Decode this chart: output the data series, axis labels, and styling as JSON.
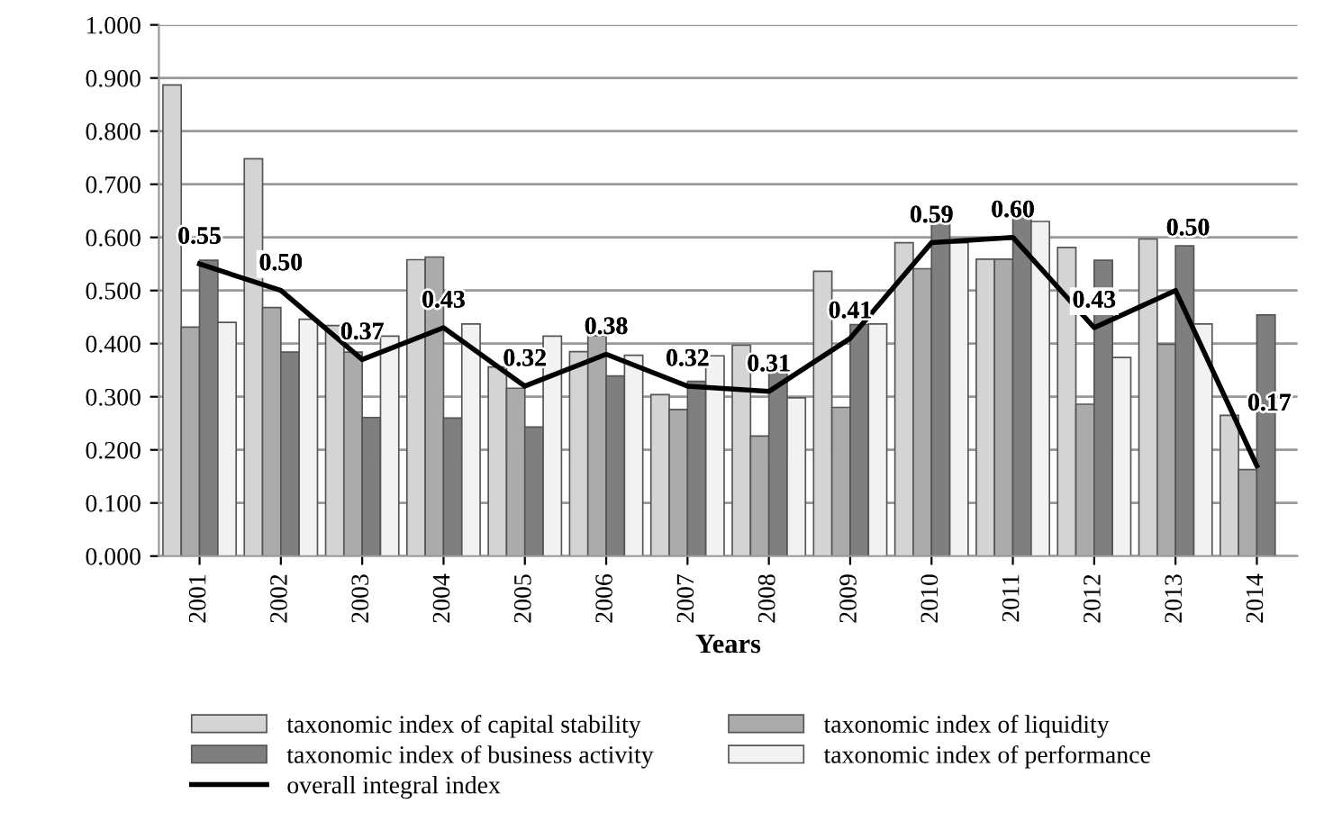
{
  "chart_data": {
    "type": "bar",
    "xlabel": "Years",
    "categories": [
      "2001",
      "2002",
      "2003",
      "2004",
      "2005",
      "2006",
      "2007",
      "2008",
      "2009",
      "2010",
      "2011",
      "2012",
      "2013",
      "2014"
    ],
    "series": [
      {
        "name": "taxonomic index of capital stability",
        "color": "#d4d4d4",
        "values": [
          0.887,
          0.748,
          0.434,
          0.558,
          0.356,
          0.385,
          0.304,
          0.397,
          0.536,
          0.59,
          0.559,
          0.581,
          0.597,
          0.265
        ]
      },
      {
        "name": "taxonomic index of liquidity",
        "color": "#ababab",
        "values": [
          0.431,
          0.468,
          0.384,
          0.563,
          0.316,
          0.415,
          0.276,
          0.226,
          0.28,
          0.541,
          0.559,
          0.286,
          0.399,
          0.163
        ]
      },
      {
        "name": "taxonomic index of business activity",
        "color": "#7f7f7f",
        "values": [
          0.557,
          0.384,
          0.261,
          0.26,
          0.243,
          0.339,
          0.329,
          0.356,
          0.436,
          0.635,
          0.649,
          0.557,
          0.584,
          0.454
        ]
      },
      {
        "name": "taxonomic index of performance",
        "color": "#f2f2f2",
        "values": [
          0.44,
          0.446,
          0.414,
          0.437,
          0.414,
          0.378,
          0.377,
          0.298,
          0.437,
          0.59,
          0.63,
          0.374,
          0.437,
          null
        ]
      },
      {
        "name": "overall integral index",
        "type": "line",
        "color": "#000000",
        "data_labels": true,
        "value_labels": [
          "0.55",
          "0.50",
          "0.37",
          "0.43",
          "0.32",
          "0.38",
          "0.32",
          "0.31",
          "0.41",
          "0.59",
          "0.60",
          "0.43",
          "0.50",
          "0.17"
        ],
        "values": [
          0.55,
          0.5,
          0.37,
          0.43,
          0.32,
          0.38,
          0.32,
          0.31,
          0.41,
          0.59,
          0.6,
          0.43,
          0.5,
          0.17
        ]
      }
    ],
    "ylim": [
      0,
      1.0
    ],
    "yticks": [
      {
        "value": 0,
        "label": "0.000"
      },
      {
        "value": 0.1,
        "label": "0.100"
      },
      {
        "value": 0.2,
        "label": "0.200"
      },
      {
        "value": 0.3,
        "label": "0.300"
      },
      {
        "value": 0.4,
        "label": "0.400"
      },
      {
        "value": 0.5,
        "label": "0.500"
      },
      {
        "value": 0.6,
        "label": "0.600"
      },
      {
        "value": 0.7,
        "label": "0.700"
      },
      {
        "value": 0.8,
        "label": "0.800"
      },
      {
        "value": 0.9,
        "label": "0.900"
      },
      {
        "value": 1.0,
        "label": "1.000"
      }
    ],
    "grid": "y",
    "legend": "bottom"
  }
}
